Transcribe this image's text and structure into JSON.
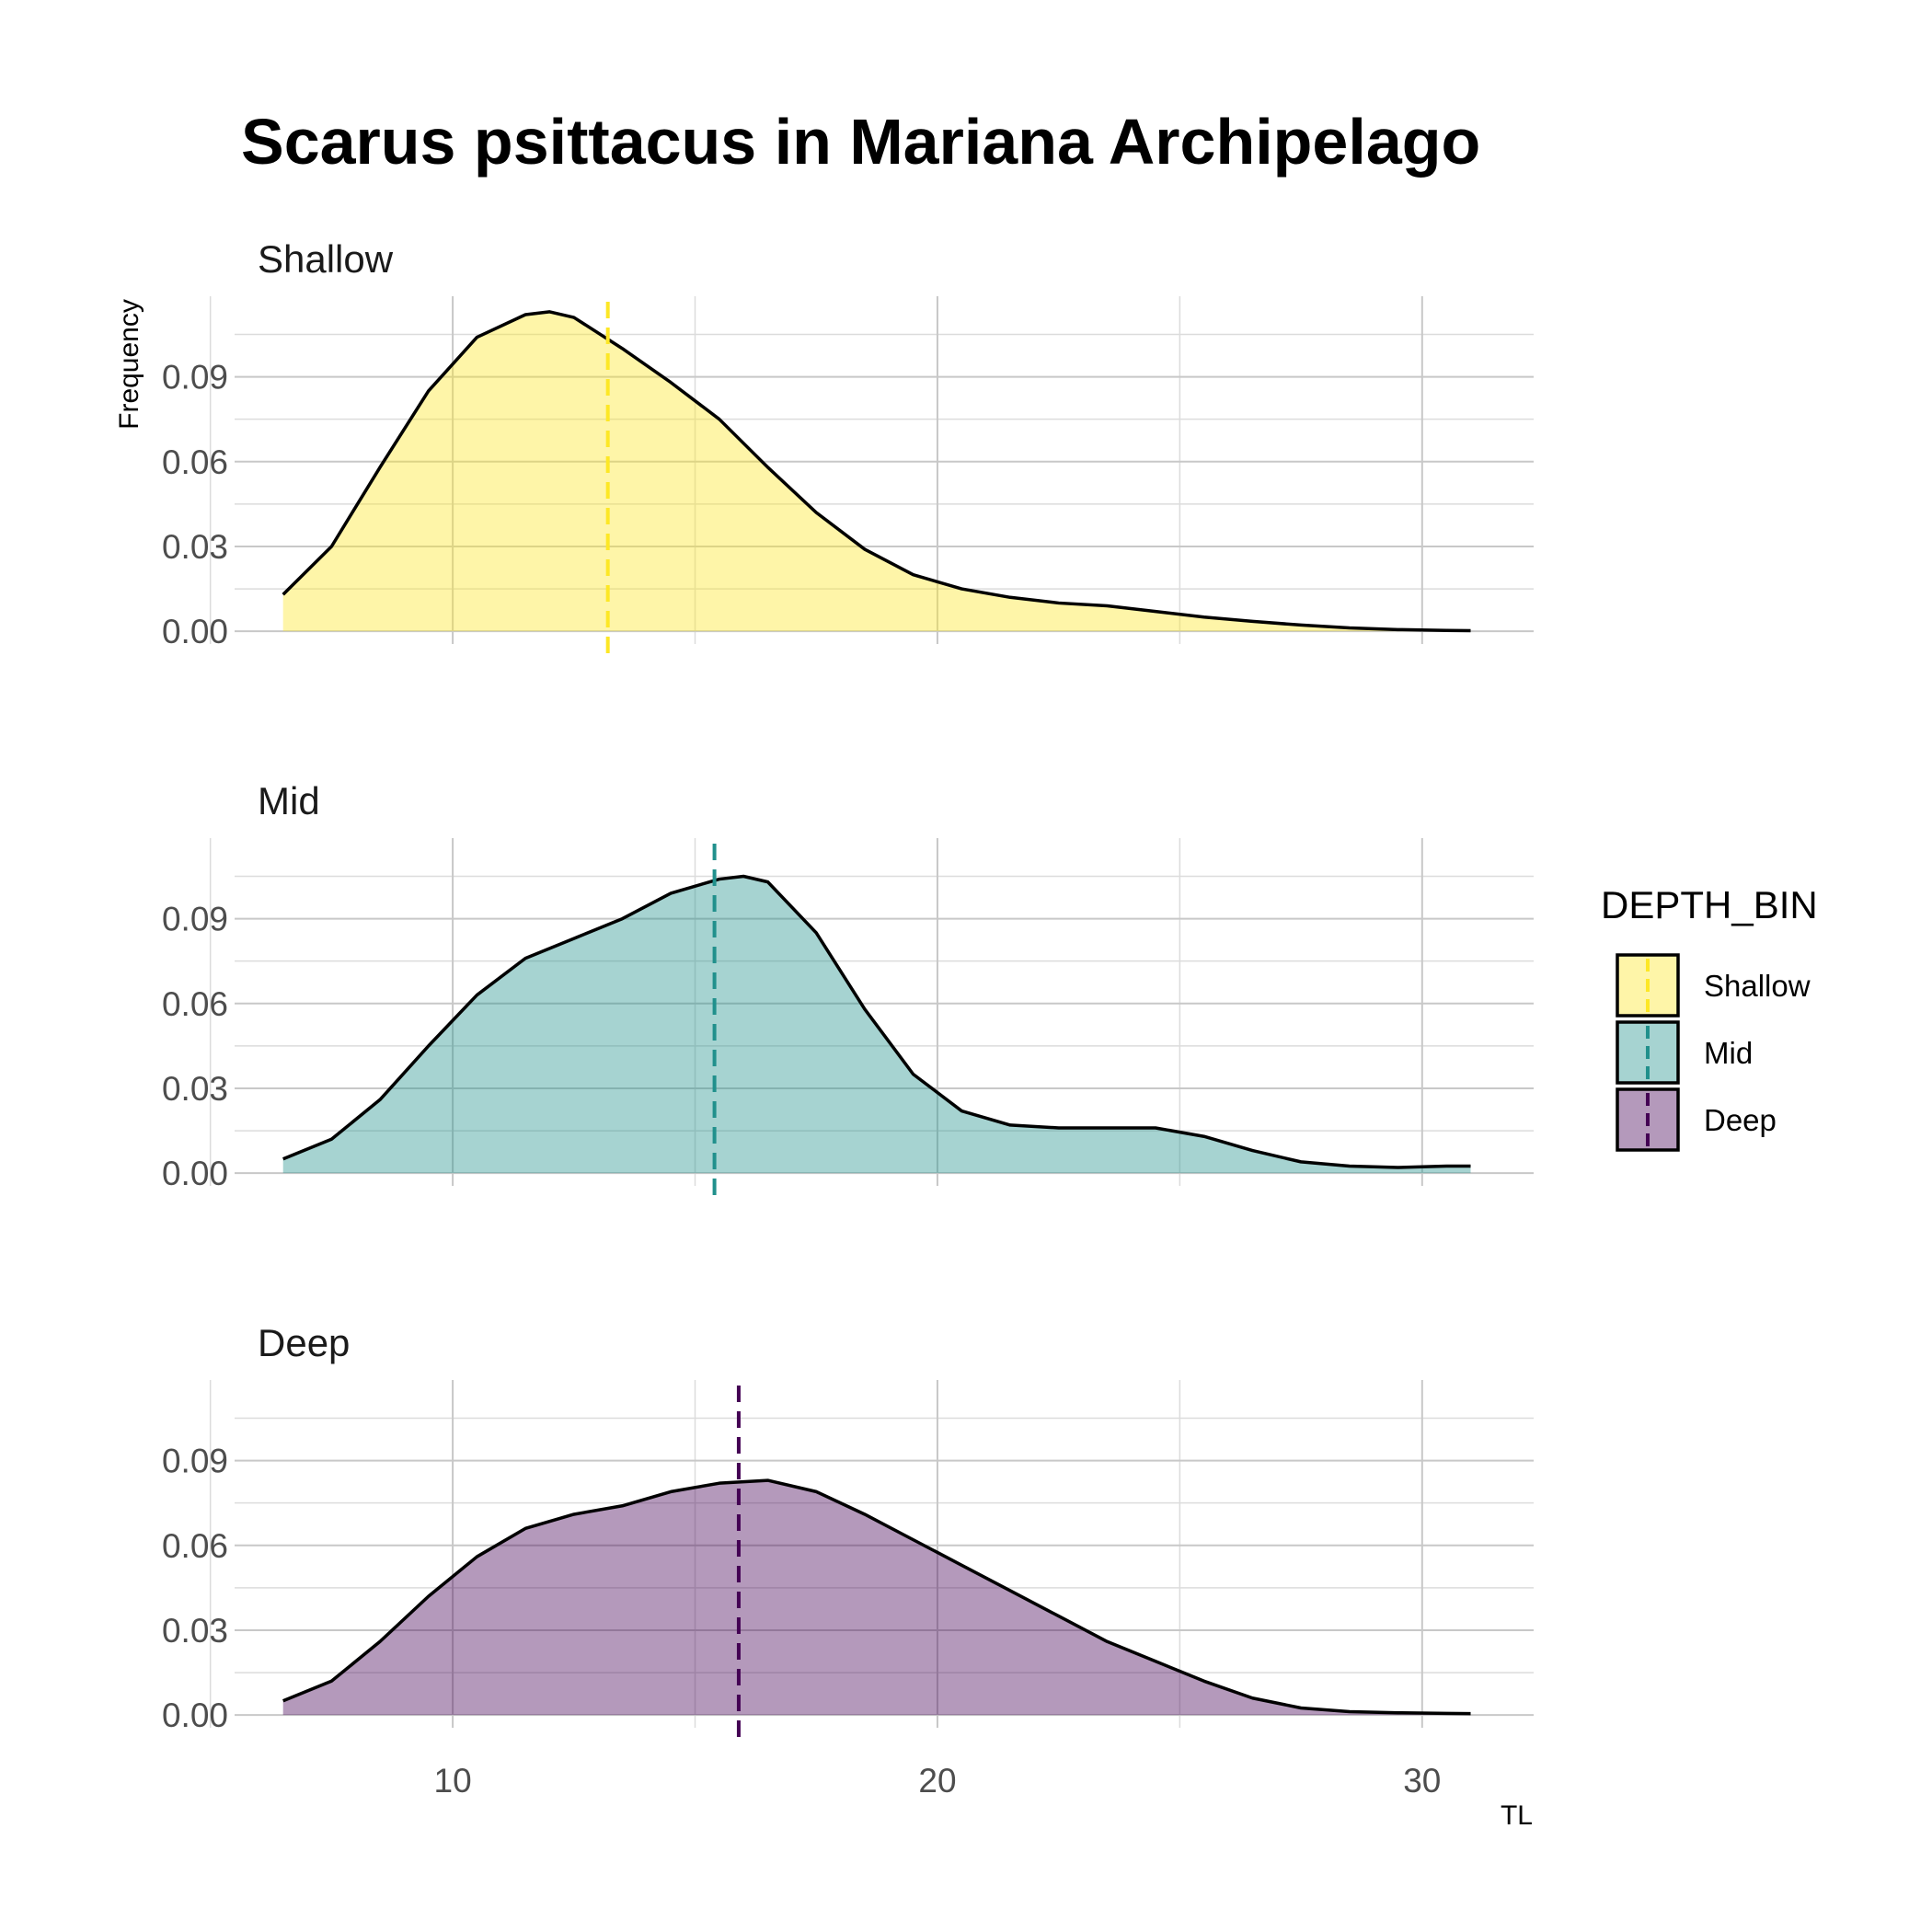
{
  "chart_data": {
    "type": "area",
    "title": "Scarus psittacus in Mariana Archipelago",
    "xlabel": "TL",
    "ylabel": "Frequency",
    "xlim": [
      5.5,
      32.3
    ],
    "ylim": [
      -0.0045,
      0.1185
    ],
    "x_ticks": [
      10,
      20,
      30
    ],
    "y_ticks": [
      0.0,
      0.03,
      0.06,
      0.09
    ],
    "y_tick_labels": [
      "0.00",
      "0.03",
      "0.06",
      "0.09"
    ],
    "x_tick_labels": [
      "10",
      "20",
      "30"
    ],
    "grid": true,
    "legend": {
      "title": "DEPTH_BIN",
      "position": "right",
      "entries": [
        "Shallow",
        "Mid",
        "Deep"
      ]
    },
    "series": [
      {
        "name": "Shallow",
        "fill": "#FDE725",
        "mean": 13.2,
        "x": [
          6.5,
          7.5,
          8.5,
          9.5,
          10.5,
          11.5,
          12.0,
          12.5,
          13.5,
          14.5,
          15.5,
          16.5,
          17.5,
          18.5,
          19.5,
          20.5,
          21.5,
          22.5,
          23.5,
          24.5,
          25.5,
          26.5,
          27.5,
          28.5,
          29.5,
          30.5,
          31.0
        ],
        "y": [
          0.013,
          0.03,
          0.058,
          0.085,
          0.104,
          0.112,
          0.113,
          0.111,
          0.1,
          0.088,
          0.075,
          0.058,
          0.042,
          0.029,
          0.02,
          0.015,
          0.012,
          0.01,
          0.009,
          0.007,
          0.005,
          0.0035,
          0.0022,
          0.0012,
          0.0006,
          0.0003,
          0.0002
        ]
      },
      {
        "name": "Mid",
        "fill": "#21908C",
        "mean": 15.4,
        "x": [
          6.5,
          7.5,
          8.5,
          9.5,
          10.5,
          11.5,
          12.5,
          13.5,
          14.5,
          15.5,
          16.0,
          16.5,
          17.5,
          18.5,
          19.5,
          20.5,
          21.5,
          22.5,
          23.5,
          24.5,
          25.5,
          26.5,
          27.5,
          28.5,
          29.5,
          30.5,
          31.0
        ],
        "y": [
          0.005,
          0.012,
          0.026,
          0.045,
          0.063,
          0.076,
          0.083,
          0.09,
          0.099,
          0.104,
          0.105,
          0.103,
          0.085,
          0.058,
          0.035,
          0.022,
          0.017,
          0.016,
          0.016,
          0.016,
          0.013,
          0.008,
          0.004,
          0.0025,
          0.002,
          0.0025,
          0.0025
        ]
      },
      {
        "name": "Deep",
        "fill": "#440154",
        "mean": 15.9,
        "x": [
          6.5,
          7.5,
          8.5,
          9.5,
          10.5,
          11.5,
          12.5,
          13.5,
          14.5,
          15.5,
          16.5,
          17.5,
          18.5,
          19.5,
          20.5,
          21.5,
          22.5,
          23.5,
          24.5,
          25.5,
          26.5,
          27.5,
          28.5,
          29.5,
          30.5,
          31.0
        ],
        "y": [
          0.005,
          0.012,
          0.026,
          0.042,
          0.056,
          0.066,
          0.071,
          0.074,
          0.079,
          0.082,
          0.083,
          0.079,
          0.071,
          0.062,
          0.053,
          0.044,
          0.035,
          0.026,
          0.019,
          0.012,
          0.006,
          0.0025,
          0.0012,
          0.0008,
          0.0006,
          0.0005
        ]
      }
    ]
  }
}
